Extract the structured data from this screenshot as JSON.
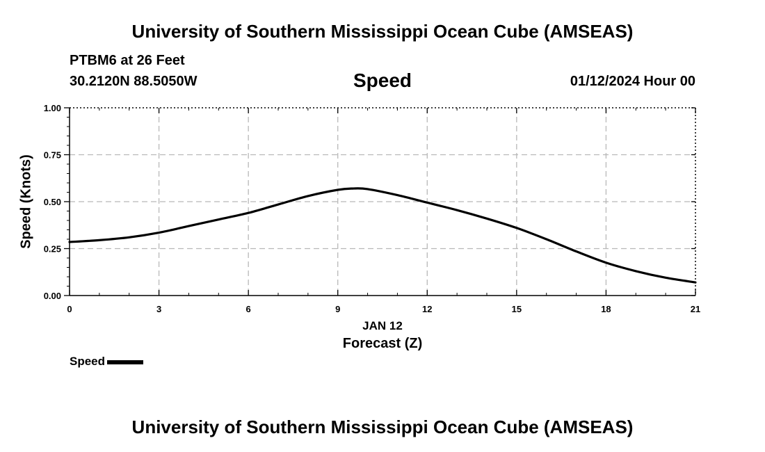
{
  "header": {
    "title": "University of Southern Mississippi Ocean Cube (AMSEAS)",
    "station": "PTBM6 at 26 Feet",
    "coordinates": "30.2120N  88.5050W",
    "run_time": "01/12/2024 Hour 00"
  },
  "footer": {
    "title": "University of Southern Mississippi Ocean Cube (AMSEAS)"
  },
  "chart_data": {
    "type": "line",
    "title": "Speed",
    "xlabel": "Forecast (Z)",
    "xlabel_date": "JAN 12",
    "ylabel": "Speed (Knots)",
    "xlim": [
      0,
      21
    ],
    "ylim": [
      0,
      1
    ],
    "x_ticks": [
      0,
      3,
      6,
      9,
      12,
      15,
      18,
      21
    ],
    "x_tick_labels": [
      "0",
      "3",
      "6",
      "9",
      "12",
      "15",
      "18",
      "21"
    ],
    "y_ticks": [
      0,
      0.25,
      0.5,
      0.75,
      1
    ],
    "y_tick_labels": [
      "0.00",
      "0.25",
      "0.50",
      "0.75",
      "1.00"
    ],
    "grid": true,
    "legend_position": "bottom-left",
    "series": [
      {
        "name": "Speed",
        "color": "#000000",
        "x": [
          0,
          1,
          2,
          3,
          4,
          5,
          6,
          7,
          8,
          9,
          9.5,
          10,
          11,
          12,
          13,
          14,
          15,
          16,
          17,
          18,
          19,
          20,
          21
        ],
        "values": [
          0.285,
          0.295,
          0.31,
          0.335,
          0.37,
          0.405,
          0.44,
          0.485,
          0.53,
          0.563,
          0.57,
          0.567,
          0.535,
          0.495,
          0.455,
          0.41,
          0.36,
          0.3,
          0.235,
          0.175,
          0.13,
          0.095,
          0.07
        ]
      }
    ]
  }
}
